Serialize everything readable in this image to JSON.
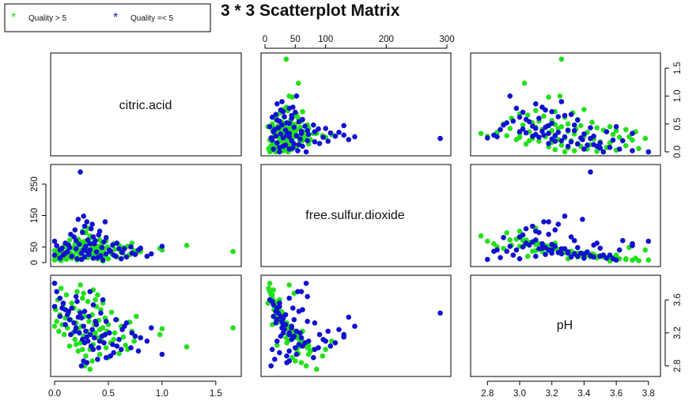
{
  "chart_data": {
    "type": "scatter",
    "title": "3 * 3 Scatterplot Matrix",
    "variables": [
      "citric.acid",
      "free.sulfur.dioxide",
      "pH"
    ],
    "legend": {
      "position": "top-left",
      "entries": [
        {
          "label": "Quality > 5",
          "color": "#22e01a",
          "symbol": "*"
        },
        {
          "label": "Quality =< 5",
          "color": "#1010d0",
          "symbol": "*"
        }
      ]
    },
    "axes": {
      "citric.acid": {
        "range": [
          0,
          1.7
        ],
        "ticks": [
          "0.0",
          "0.5",
          "1.0",
          "1.5"
        ]
      },
      "free.sulfur.dioxide": {
        "range": [
          0,
          300
        ],
        "ticks": [
          "0",
          "50",
          "100",
          "200",
          "300"
        ],
        "ticks_left": [
          "0",
          "50",
          "150",
          "250"
        ]
      },
      "pH": {
        "range": [
          2.72,
          3.85
        ],
        "ticks": [
          "2.8",
          "3.0",
          "3.2",
          "3.4",
          "3.6",
          "3.8"
        ],
        "ticks_right": [
          "2.8",
          "3.2",
          "3.6"
        ]
      }
    },
    "series": [
      {
        "name": "Quality > 5",
        "color": "#22e01a",
        "points": [
          [
            1.66,
            35,
            3.26
          ],
          [
            1.23,
            55,
            3.03
          ],
          [
            1.0,
            40,
            3.25
          ],
          [
            0.98,
            45,
            3.18
          ],
          [
            0.76,
            30,
            3.4
          ],
          [
            0.74,
            38,
            3.1
          ],
          [
            0.72,
            62,
            3.22
          ],
          [
            0.7,
            25,
            3.33
          ],
          [
            0.66,
            20,
            3.05
          ],
          [
            0.64,
            48,
            3.15
          ],
          [
            0.62,
            32,
            3.28
          ],
          [
            0.6,
            55,
            2.95
          ],
          [
            0.58,
            18,
            3.36
          ],
          [
            0.56,
            42,
            3.2
          ],
          [
            0.55,
            60,
            3.12
          ],
          [
            0.53,
            28,
            3.45
          ],
          [
            0.52,
            36,
            3.08
          ],
          [
            0.5,
            12,
            3.3
          ],
          [
            0.49,
            50,
            3.22
          ],
          [
            0.48,
            70,
            3.02
          ],
          [
            0.47,
            22,
            3.38
          ],
          [
            0.46,
            44,
            3.17
          ],
          [
            0.45,
            33,
            3.26
          ],
          [
            0.44,
            58,
            3.1
          ],
          [
            0.43,
            15,
            3.48
          ],
          [
            0.42,
            40,
            3.24
          ],
          [
            0.41,
            27,
            3.35
          ],
          [
            0.4,
            52,
            3.14
          ],
          [
            0.39,
            18,
            3.52
          ],
          [
            0.38,
            46,
            3.2
          ],
          [
            0.37,
            35,
            3.3
          ],
          [
            0.36,
            64,
            3.06
          ],
          [
            0.35,
            24,
            3.42
          ],
          [
            0.34,
            38,
            3.18
          ],
          [
            0.33,
            80,
            3.0
          ],
          [
            0.32,
            30,
            3.34
          ],
          [
            0.31,
            16,
            3.58
          ],
          [
            0.3,
            44,
            3.22
          ],
          [
            0.29,
            95,
            2.92
          ],
          [
            0.28,
            20,
            3.4
          ],
          [
            0.27,
            54,
            3.16
          ],
          [
            0.26,
            12,
            3.62
          ],
          [
            0.25,
            34,
            3.28
          ],
          [
            0.24,
            66,
            3.08
          ],
          [
            0.23,
            26,
            3.46
          ],
          [
            0.22,
            42,
            3.24
          ],
          [
            0.21,
            8,
            3.7
          ],
          [
            0.2,
            36,
            3.32
          ],
          [
            0.19,
            58,
            3.12
          ],
          [
            0.18,
            22,
            3.5
          ],
          [
            0.17,
            46,
            3.2
          ],
          [
            0.16,
            14,
            3.56
          ],
          [
            0.15,
            30,
            3.36
          ],
          [
            0.14,
            72,
            3.04
          ],
          [
            0.13,
            18,
            3.44
          ],
          [
            0.12,
            40,
            3.26
          ],
          [
            0.11,
            10,
            3.66
          ],
          [
            0.1,
            28,
            3.38
          ],
          [
            0.09,
            52,
            3.18
          ],
          [
            0.08,
            16,
            3.54
          ],
          [
            0.07,
            34,
            3.3
          ],
          [
            0.06,
            6,
            3.74
          ],
          [
            0.05,
            24,
            3.42
          ],
          [
            0.04,
            44,
            3.22
          ],
          [
            0.03,
            12,
            3.6
          ],
          [
            0.02,
            30,
            3.34
          ],
          [
            0.01,
            20,
            3.48
          ],
          [
            0.0,
            8,
            3.8
          ],
          [
            0.0,
            38,
            3.28
          ],
          [
            0.0,
            18,
            3.52
          ],
          [
            0.45,
            5,
            3.56
          ],
          [
            0.35,
            50,
            2.86
          ],
          [
            0.28,
            68,
            2.8
          ],
          [
            0.33,
            85,
            2.76
          ],
          [
            0.4,
            12,
            3.66
          ],
          [
            0.26,
            100,
            3.0
          ],
          [
            0.3,
            60,
            2.84
          ],
          [
            0.38,
            24,
            3.6
          ],
          [
            0.22,
            75,
            2.98
          ],
          [
            0.5,
            45,
            2.9
          ],
          [
            0.8,
            35,
            3.14
          ],
          [
            0.68,
            52,
            3.0
          ],
          [
            0.31,
            110,
            3.1
          ],
          [
            0.24,
            40,
            3.78
          ],
          [
            0.36,
            14,
            3.72
          ],
          [
            0.42,
            72,
            2.94
          ],
          [
            0.2,
            62,
            3.06
          ],
          [
            0.27,
            48,
            3.68
          ]
        ]
      },
      {
        "name": "Quality =< 5",
        "color": "#1010d0",
        "points": [
          [
            0.24,
            289,
            3.44
          ],
          [
            0.27,
            148,
            3.28
          ],
          [
            0.22,
            138,
            3.39
          ],
          [
            0.3,
            130,
            3.15
          ],
          [
            0.35,
            122,
            3.24
          ],
          [
            0.0,
            68,
            3.8
          ],
          [
            0.02,
            54,
            3.7
          ],
          [
            0.05,
            40,
            3.62
          ],
          [
            0.08,
            24,
            3.56
          ],
          [
            0.1,
            62,
            3.48
          ],
          [
            0.12,
            34,
            3.42
          ],
          [
            0.14,
            48,
            3.36
          ],
          [
            0.16,
            20,
            3.5
          ],
          [
            0.18,
            82,
            3.32
          ],
          [
            0.2,
            44,
            3.26
          ],
          [
            0.21,
            12,
            3.58
          ],
          [
            0.23,
            58,
            3.2
          ],
          [
            0.25,
            30,
            3.38
          ],
          [
            0.26,
            96,
            3.12
          ],
          [
            0.28,
            18,
            3.46
          ],
          [
            0.29,
            52,
            3.22
          ],
          [
            0.31,
            72,
            3.1
          ],
          [
            0.32,
            26,
            3.4
          ],
          [
            0.33,
            40,
            3.18
          ],
          [
            0.34,
            108,
            3.04
          ],
          [
            0.36,
            14,
            3.54
          ],
          [
            0.37,
            60,
            3.14
          ],
          [
            0.39,
            34,
            3.3
          ],
          [
            0.41,
            88,
            3.02
          ],
          [
            0.43,
            22,
            3.44
          ],
          [
            0.44,
            48,
            3.16
          ],
          [
            0.46,
            66,
            3.08
          ],
          [
            0.48,
            28,
            3.34
          ],
          [
            0.51,
            40,
            3.2
          ],
          [
            0.54,
            56,
            3.06
          ],
          [
            0.57,
            20,
            3.36
          ],
          [
            0.6,
            44,
            3.12
          ],
          [
            0.63,
            32,
            3.24
          ],
          [
            0.67,
            18,
            3.32
          ],
          [
            0.71,
            50,
            3.02
          ],
          [
            0.75,
            26,
            3.16
          ],
          [
            0.78,
            40,
            2.98
          ],
          [
            0.86,
            20,
            3.1
          ],
          [
            1.0,
            52,
            2.94
          ],
          [
            0.4,
            16,
            2.88
          ],
          [
            0.3,
            36,
            2.84
          ],
          [
            0.25,
            10,
            2.8
          ],
          [
            0.48,
            80,
            2.9
          ],
          [
            0.55,
            24,
            2.96
          ],
          [
            0.62,
            12,
            3.0
          ],
          [
            0.2,
            70,
            3.64
          ],
          [
            0.15,
            90,
            3.18
          ],
          [
            0.1,
            30,
            3.3
          ],
          [
            0.05,
            14,
            3.4
          ],
          [
            0.0,
            24,
            3.52
          ],
          [
            0.38,
            70,
            3.34
          ],
          [
            0.42,
            100,
            3.1
          ],
          [
            0.28,
            116,
            3.08
          ],
          [
            0.33,
            60,
            3.7
          ],
          [
            0.45,
            8,
            3.6
          ],
          [
            0.52,
            36,
            2.92
          ],
          [
            0.58,
            62,
            3.04
          ],
          [
            0.65,
            44,
            3.28
          ],
          [
            0.72,
            30,
            3.2
          ],
          [
            0.8,
            46,
            3.14
          ],
          [
            0.9,
            28,
            3.26
          ],
          [
            0.36,
            82,
            3.0
          ],
          [
            0.19,
            104,
            3.22
          ],
          [
            0.27,
            40,
            2.86
          ],
          [
            0.13,
            56,
            3.46
          ],
          [
            0.07,
            46,
            3.5
          ],
          [
            0.47,
            130,
            3.18
          ]
        ]
      }
    ]
  }
}
